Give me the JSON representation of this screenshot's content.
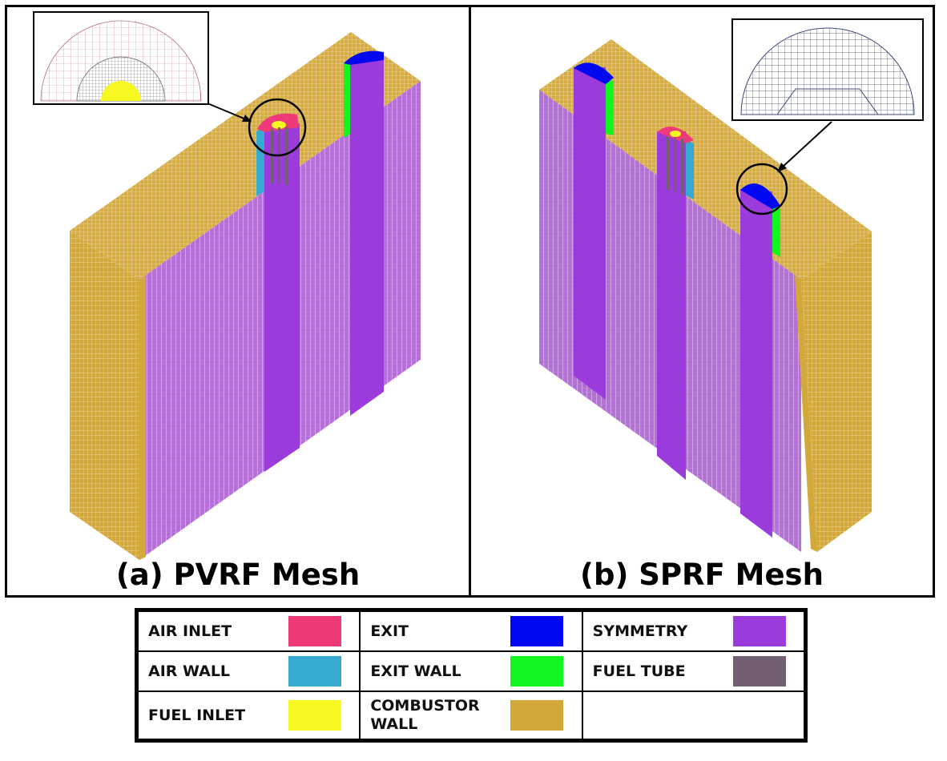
{
  "panels": [
    {
      "caption": "(a) PVRF Mesh"
    },
    {
      "caption": "(b) SPRF Mesh"
    }
  ],
  "colors": {
    "air_inlet": "#ee3a78",
    "air_wall": "#35a9cf",
    "fuel_inlet": "#f7f722",
    "exit": "#0008f2",
    "exit_wall": "#13f51e",
    "combustor_wall": "#d3a83b",
    "symmetry": "#9b3bdb",
    "fuel_tube": "#725f73"
  },
  "legend": {
    "rows": [
      [
        {
          "label": "AIR INLET",
          "color": "#ee3a78"
        },
        {
          "label": "EXIT",
          "color": "#0008f2"
        },
        {
          "label": "SYMMETRY",
          "color": "#9b3bdb"
        }
      ],
      [
        {
          "label": "AIR WALL",
          "color": "#35a9cf"
        },
        {
          "label": "EXIT WALL",
          "color": "#13f51e"
        },
        {
          "label": "FUEL TUBE",
          "color": "#725f73"
        }
      ],
      [
        {
          "label": "FUEL INLET",
          "color": "#f7f722"
        },
        {
          "label": "COMBUSTOR WALL",
          "color": "#d3a83b"
        },
        {
          "label": "",
          "color": ""
        }
      ]
    ]
  }
}
